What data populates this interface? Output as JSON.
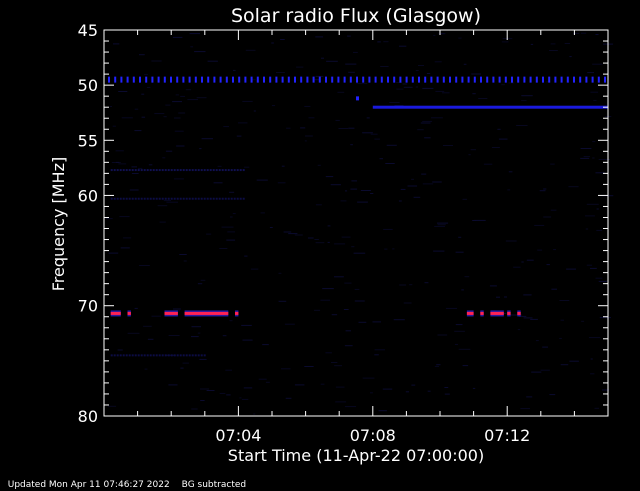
{
  "chart_data": {
    "type": "heatmap",
    "title": "Solar radio Flux (Glasgow)",
    "xlabel": "Start Time (11-Apr-22 07:00:00)",
    "ylabel": "Frequency [MHz]",
    "x_units": "minutes after 07:00",
    "xlim": [
      0,
      15
    ],
    "ylim": [
      45,
      80
    ],
    "y_axis_inverted": true,
    "y_ticks": [
      45,
      50,
      55,
      60,
      70,
      80
    ],
    "y_tick_labels": [
      "45",
      "50",
      "55",
      "60",
      "70",
      "80"
    ],
    "x_ticks": [
      4,
      8,
      12
    ],
    "x_tick_labels": [
      "07:04",
      "07:08",
      "07:12"
    ],
    "grid": false,
    "background_color": "#000000",
    "features": [
      {
        "type": "dotted-line",
        "name": "",
        "freq_mhz": 49.5,
        "time_range": [
          0,
          15
        ],
        "color": "#2222ff"
      },
      {
        "type": "line",
        "name": "",
        "freq_mhz": 52.0,
        "time_range": [
          8.0,
          15
        ],
        "color": "#1a1add"
      },
      {
        "type": "point",
        "name": "",
        "freq_mhz": 51.2,
        "time": 7.5,
        "color": "#2222ff"
      },
      {
        "type": "burst-segments",
        "name": "",
        "freq_mhz": 70.7,
        "color": "#ff2255",
        "segments": [
          [
            0.2,
            0.5
          ],
          [
            0.7,
            0.8
          ],
          [
            1.8,
            2.2
          ],
          [
            2.4,
            3.7
          ],
          [
            3.9,
            4.0
          ],
          [
            10.8,
            11.0
          ],
          [
            11.2,
            11.3
          ],
          [
            11.5,
            11.9
          ],
          [
            12.0,
            12.1
          ],
          [
            12.3,
            12.4
          ]
        ]
      },
      {
        "type": "faint-band",
        "name": "",
        "freq_mhz": 57.7,
        "time_range": [
          0.2,
          4.2
        ],
        "color": "#101050"
      },
      {
        "type": "faint-band",
        "name": "",
        "freq_mhz": 60.3,
        "time_range": [
          0.2,
          4.2
        ],
        "color": "#0c0c44"
      },
      {
        "type": "faint-band",
        "name": "",
        "freq_mhz": 74.5,
        "time_range": [
          0.2,
          3.0
        ],
        "color": "#0c0c44"
      }
    ]
  },
  "footer": {
    "updated": "Updated Mon Apr 11 07:46:27 2022",
    "bg_note": "BG subtracted"
  }
}
